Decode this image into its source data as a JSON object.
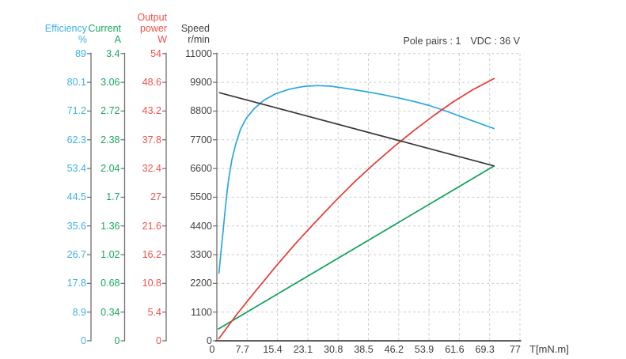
{
  "chart_data": {
    "type": "line",
    "title": "",
    "xlabel": "T[mN.m]",
    "x_range": [
      0,
      77
    ],
    "x_ticks": [
      "0",
      "7.7",
      "15.4",
      "23.1",
      "30.8",
      "38.5",
      "46.2",
      "53.9",
      "61.6",
      "69.3",
      "77"
    ],
    "grid": "dashed",
    "legend_position": "none",
    "annotations": {
      "pole_pairs": "Pole pairs : 1",
      "vdc": "VDC : 36 V"
    },
    "colors": {
      "grid": "#cccccc",
      "y_axis": "#6e6e6e",
      "x_axis": "#4a4a4a",
      "text": "#414141"
    },
    "axes": [
      {
        "name": "efficiency",
        "title_lines": [
          "Efficiency"
        ],
        "unit": "%",
        "color": "#3fb1e5",
        "range": [
          0,
          89
        ],
        "tick_labels": [
          "89",
          "80.1",
          "71.2",
          "62.3",
          "53.4",
          "44.5",
          "35.6",
          "26.7",
          "17.8",
          "8.9",
          "0"
        ]
      },
      {
        "name": "current",
        "title_lines": [
          "Current"
        ],
        "unit": "A",
        "color": "#17a85e",
        "range": [
          0,
          3.4
        ],
        "tick_labels": [
          "3.4",
          "3.06",
          "2.72",
          "2.38",
          "2.04",
          "1.7",
          "1.36",
          "1.02",
          "0.68",
          "0.34",
          "0"
        ]
      },
      {
        "name": "output-power",
        "title_lines": [
          "Output",
          "power"
        ],
        "unit": "W",
        "color": "#f0524a",
        "range": [
          0,
          54
        ],
        "tick_labels": [
          "54",
          "48.6",
          "43.2",
          "37.8",
          "32.4",
          "27",
          "21.6",
          "16.2",
          "10.8",
          "5.4",
          "0"
        ]
      },
      {
        "name": "speed",
        "title_lines": [
          "Speed"
        ],
        "unit": "r/min",
        "color": "#414141",
        "range": [
          0,
          11000
        ],
        "tick_labels": [
          "11000",
          "9900",
          "8800",
          "7700",
          "6600",
          "5500",
          "4400",
          "3300",
          "2200",
          "1100",
          "0"
        ]
      }
    ],
    "series": [
      {
        "name": "efficiency",
        "axis": "efficiency",
        "color": "#2aa7e0",
        "points": [
          [
            0.55,
            21
          ],
          [
            1.0,
            27
          ],
          [
            1.5,
            33
          ],
          [
            2.0,
            39
          ],
          [
            2.5,
            45
          ],
          [
            3.0,
            50
          ],
          [
            3.8,
            56
          ],
          [
            4.8,
            61
          ],
          [
            6.0,
            65.5
          ],
          [
            7.5,
            69
          ],
          [
            9.5,
            72
          ],
          [
            12,
            74.6
          ],
          [
            15,
            76.6
          ],
          [
            18.5,
            78
          ],
          [
            22,
            78.8
          ],
          [
            25.5,
            79.1
          ],
          [
            29,
            78.9
          ],
          [
            33.5,
            78.1
          ],
          [
            38,
            77.2
          ],
          [
            42,
            76.3
          ],
          [
            46,
            75.3
          ],
          [
            50,
            74.2
          ],
          [
            54,
            72.9
          ],
          [
            58,
            71.3
          ],
          [
            62,
            69.5
          ],
          [
            66,
            67.7
          ],
          [
            70.4,
            65.8
          ]
        ]
      },
      {
        "name": "current",
        "axis": "current",
        "color": "#0da158",
        "points": [
          [
            0.4,
            0.14
          ],
          [
            70.4,
            2.07
          ]
        ]
      },
      {
        "name": "output-power",
        "axis": "output-power",
        "color": "#e23b33",
        "points": [
          [
            0.5,
            0.4
          ],
          [
            5,
            4.9
          ],
          [
            10,
            9.5
          ],
          [
            15,
            14.0
          ],
          [
            20,
            18.3
          ],
          [
            25,
            22.3
          ],
          [
            30,
            26.2
          ],
          [
            35,
            29.9
          ],
          [
            40,
            33.3
          ],
          [
            45,
            36.5
          ],
          [
            50,
            39.5
          ],
          [
            55,
            42.3
          ],
          [
            60,
            44.9
          ],
          [
            65,
            47.2
          ],
          [
            70.4,
            49.3
          ]
        ]
      },
      {
        "name": "speed",
        "axis": "speed",
        "color": "#383838",
        "points": [
          [
            0.7,
            9500
          ],
          [
            70.4,
            6700
          ]
        ]
      }
    ]
  }
}
